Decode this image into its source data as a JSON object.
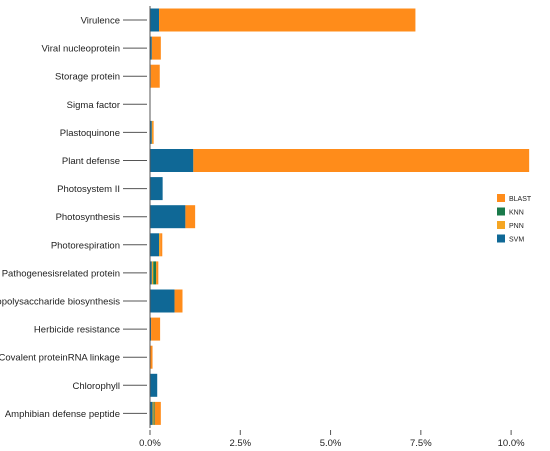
{
  "chart_data": {
    "type": "bar",
    "orientation": "horizontal",
    "stacked": true,
    "title": "",
    "xlabel": "",
    "ylabel": "",
    "x_format": "percent",
    "xlim": [
      0,
      10.8
    ],
    "x_ticks": [
      "0.0%",
      "2.5%",
      "5.0%",
      "7.5%",
      "10.0%"
    ],
    "x_tick_values": [
      0,
      2.5,
      5.0,
      7.5,
      10.0
    ],
    "grid": false,
    "legend_position": "right",
    "categories": [
      "Virulence",
      "Viral nucleoprotein",
      "Storage protein",
      "Sigma factor",
      "Plastoquinone",
      "Plant defense",
      "Photosystem II",
      "Photosynthesis",
      "Photorespiration",
      "Pathogenesisrelated protein",
      "Lipopolysaccharide biosynthesis",
      "Herbicide resistance",
      "Covalent proteinRNA linkage",
      "Chlorophyll",
      "Amphibian defense peptide"
    ],
    "series": [
      {
        "name": "SVM",
        "color": "#0f6896",
        "values": [
          0.25,
          0.05,
          0.02,
          0.0,
          0.05,
          1.2,
          0.35,
          0.98,
          0.25,
          0.05,
          0.68,
          0.03,
          0.0,
          0.2,
          0.07
        ]
      },
      {
        "name": "PNN",
        "color": "#f5a623",
        "values": [
          0.0,
          0.0,
          0.0,
          0.0,
          0.02,
          0.0,
          0.0,
          0.0,
          0.03,
          0.04,
          0.0,
          0.0,
          0.0,
          0.0,
          0.03
        ]
      },
      {
        "name": "KNN",
        "color": "#1a7a4a",
        "values": [
          0.0,
          0.0,
          0.0,
          0.0,
          0.0,
          0.0,
          0.0,
          0.0,
          0.0,
          0.08,
          0.0,
          0.0,
          0.0,
          0.0,
          0.03
        ]
      },
      {
        "name": "BLAST",
        "color": "#ff8c1a",
        "values": [
          7.1,
          0.25,
          0.25,
          0.0,
          0.03,
          9.3,
          0.0,
          0.27,
          0.06,
          0.06,
          0.22,
          0.25,
          0.07,
          0.0,
          0.17
        ]
      }
    ],
    "legend_order": [
      "BLAST",
      "KNN",
      "PNN",
      "SVM"
    ]
  }
}
